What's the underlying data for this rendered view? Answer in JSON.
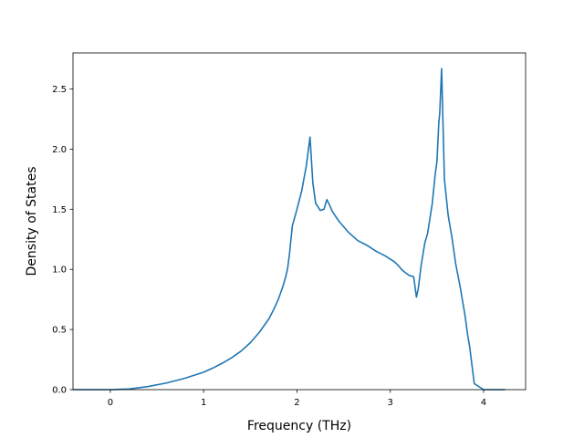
{
  "chart_data": {
    "type": "line",
    "title": "",
    "xlabel": "Frequency (THz)",
    "ylabel": "Density of States",
    "xlim": [
      -0.4,
      4.45
    ],
    "ylim": [
      0.0,
      2.8
    ],
    "xticks": [
      0,
      1,
      2,
      3,
      4
    ],
    "xtick_labels": [
      "0",
      "1",
      "2",
      "3",
      "4"
    ],
    "yticks": [
      0.0,
      0.5,
      1.0,
      1.5,
      2.0,
      2.5
    ],
    "ytick_labels": [
      "0.0",
      "0.5",
      "1.0",
      "1.5",
      "2.0",
      "2.5"
    ],
    "grid": false,
    "legend": "none",
    "series": [
      {
        "color": "#1f77b4",
        "x": [
          -0.4,
          0.0,
          0.2,
          0.4,
          0.6,
          0.8,
          1.0,
          1.1,
          1.2,
          1.3,
          1.4,
          1.5,
          1.6,
          1.7,
          1.75,
          1.8,
          1.85,
          1.88,
          1.9,
          1.92,
          1.95,
          2.0,
          2.05,
          2.1,
          2.14,
          2.17,
          2.2,
          2.25,
          2.29,
          2.32,
          2.34,
          2.38,
          2.45,
          2.55,
          2.65,
          2.75,
          2.85,
          2.95,
          3.05,
          3.1,
          3.12,
          3.15,
          3.2,
          3.25,
          3.28,
          3.3,
          3.33,
          3.37,
          3.4,
          3.45,
          3.48,
          3.5,
          3.52,
          3.53,
          3.55,
          3.58,
          3.62,
          3.66,
          3.7,
          3.75,
          3.8,
          3.83,
          3.85,
          3.9,
          4.0,
          4.23
        ],
        "y": [
          0.0,
          0.0,
          0.005,
          0.025,
          0.055,
          0.095,
          0.145,
          0.18,
          0.22,
          0.265,
          0.32,
          0.39,
          0.48,
          0.59,
          0.665,
          0.75,
          0.86,
          0.94,
          1.01,
          1.13,
          1.36,
          1.5,
          1.65,
          1.86,
          2.1,
          1.72,
          1.55,
          1.49,
          1.5,
          1.58,
          1.55,
          1.48,
          1.4,
          1.31,
          1.24,
          1.2,
          1.15,
          1.11,
          1.06,
          1.02,
          1.0,
          0.98,
          0.95,
          0.94,
          0.77,
          0.84,
          1.03,
          1.22,
          1.3,
          1.55,
          1.78,
          1.9,
          2.22,
          2.3,
          2.67,
          1.75,
          1.45,
          1.27,
          1.05,
          0.85,
          0.62,
          0.45,
          0.36,
          0.05,
          0.0,
          0.0
        ]
      }
    ]
  }
}
